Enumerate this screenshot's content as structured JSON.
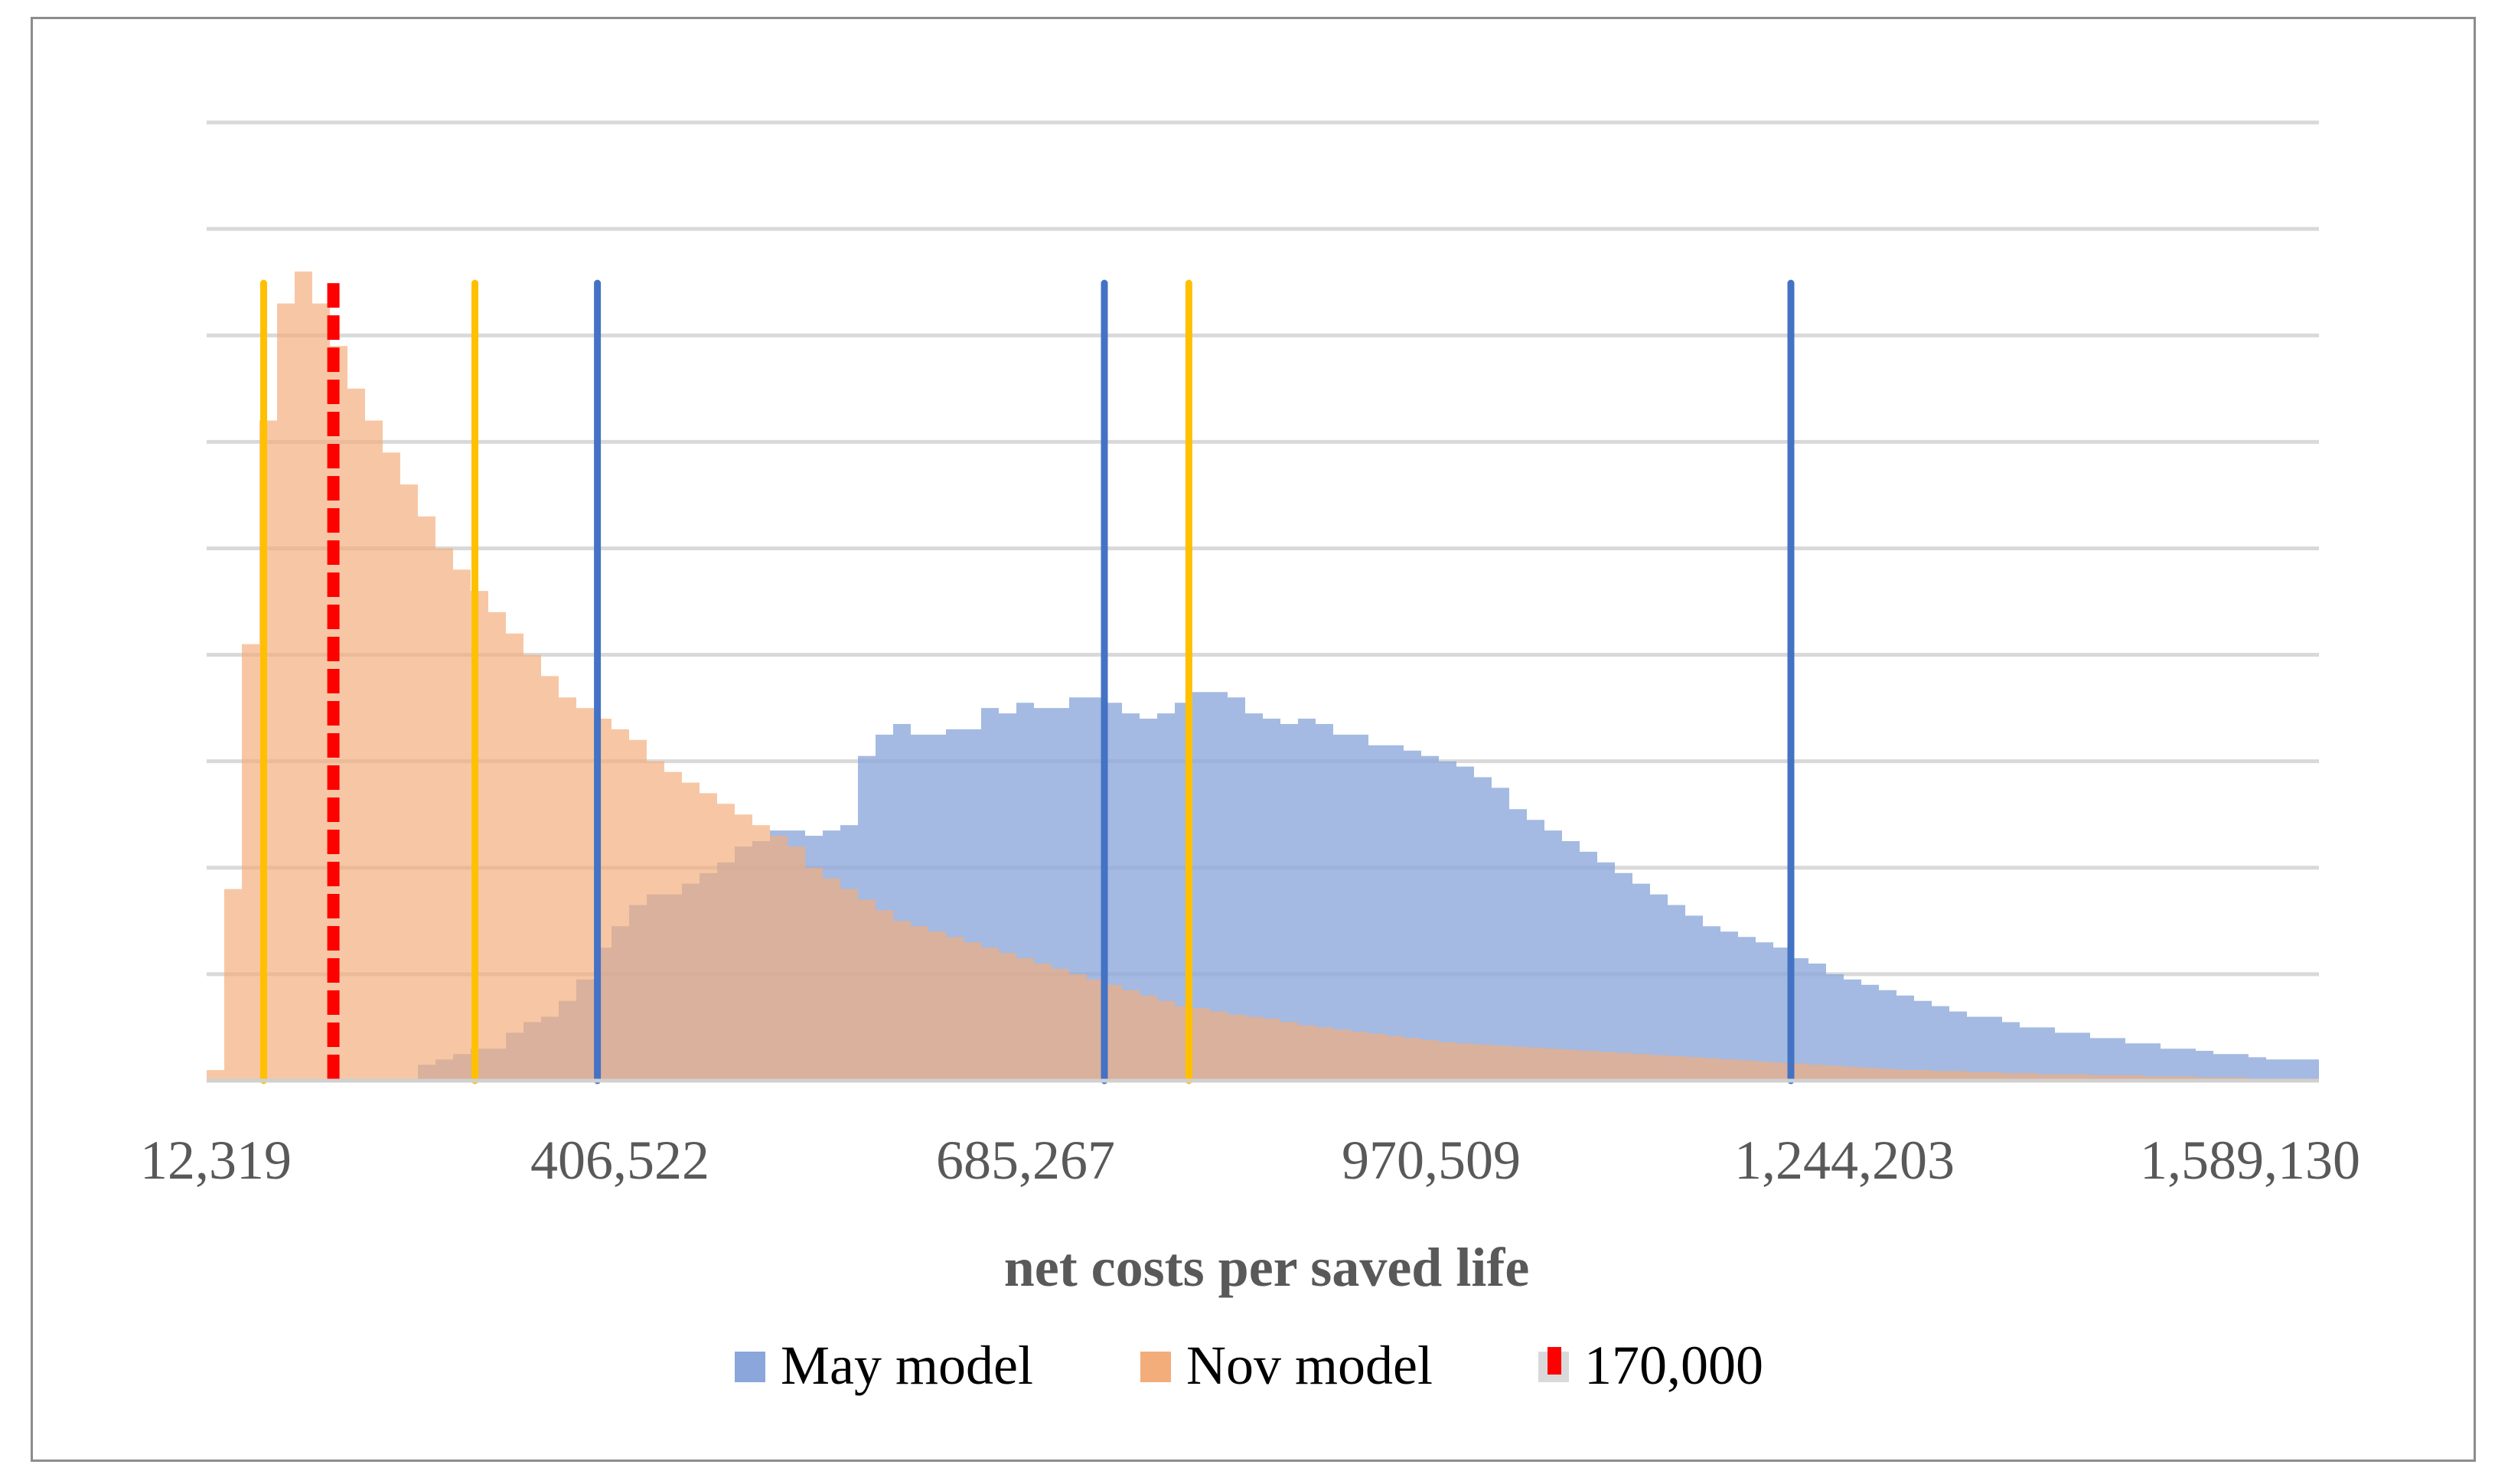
{
  "chart_data": {
    "type": "area",
    "title": "",
    "xlabel": "net costs per saved life",
    "ylabel": "",
    "x_tick_labels": [
      "12,319",
      "406,522",
      "685,267",
      "970,509",
      "1,244,203",
      "1,589,130"
    ],
    "grid": true,
    "y_gridlines": 9,
    "ylim": [
      0,
      9
    ],
    "bins": 120,
    "series": [
      {
        "name": "May model",
        "color": "#8aa6da",
        "values": [
          0,
          0,
          0,
          0,
          0,
          0,
          0,
          0,
          0,
          0,
          0,
          0,
          0.15,
          0.2,
          0.25,
          0.3,
          0.3,
          0.45,
          0.55,
          0.6,
          0.75,
          0.95,
          1.25,
          1.45,
          1.65,
          1.75,
          1.75,
          1.85,
          1.95,
          2.05,
          2.2,
          2.25,
          2.35,
          2.35,
          2.3,
          2.35,
          2.4,
          3.05,
          3.25,
          3.35,
          3.25,
          3.25,
          3.3,
          3.3,
          3.5,
          3.45,
          3.55,
          3.5,
          3.5,
          3.6,
          3.6,
          3.55,
          3.45,
          3.4,
          3.45,
          3.55,
          3.65,
          3.65,
          3.6,
          3.45,
          3.4,
          3.35,
          3.4,
          3.35,
          3.25,
          3.25,
          3.15,
          3.15,
          3.1,
          3.05,
          3.0,
          2.95,
          2.85,
          2.75,
          2.55,
          2.45,
          2.35,
          2.25,
          2.15,
          2.05,
          1.95,
          1.85,
          1.75,
          1.65,
          1.55,
          1.45,
          1.4,
          1.35,
          1.3,
          1.25,
          1.15,
          1.1,
          1.0,
          0.95,
          0.9,
          0.85,
          0.8,
          0.75,
          0.7,
          0.65,
          0.6,
          0.6,
          0.55,
          0.5,
          0.5,
          0.45,
          0.45,
          0.4,
          0.4,
          0.35,
          0.35,
          0.3,
          0.3,
          0.28,
          0.25,
          0.25,
          0.22,
          0.2,
          0.2,
          0.2
        ]
      },
      {
        "name": "Nov model",
        "color": "#f3ad7a",
        "values": [
          0.1,
          1.8,
          4.1,
          6.2,
          7.3,
          7.6,
          7.3,
          6.9,
          6.5,
          6.2,
          5.9,
          5.6,
          5.3,
          5.0,
          4.8,
          4.6,
          4.4,
          4.2,
          4.0,
          3.8,
          3.6,
          3.5,
          3.4,
          3.3,
          3.2,
          3.0,
          2.9,
          2.8,
          2.7,
          2.6,
          2.5,
          2.4,
          2.3,
          2.2,
          2.0,
          1.9,
          1.8,
          1.7,
          1.6,
          1.5,
          1.45,
          1.4,
          1.35,
          1.3,
          1.25,
          1.2,
          1.15,
          1.1,
          1.05,
          1.0,
          0.95,
          0.9,
          0.85,
          0.8,
          0.75,
          0.7,
          0.68,
          0.65,
          0.62,
          0.6,
          0.58,
          0.55,
          0.52,
          0.5,
          0.48,
          0.46,
          0.44,
          0.42,
          0.4,
          0.38,
          0.36,
          0.35,
          0.34,
          0.33,
          0.32,
          0.31,
          0.3,
          0.29,
          0.28,
          0.27,
          0.26,
          0.25,
          0.24,
          0.23,
          0.22,
          0.21,
          0.2,
          0.19,
          0.18,
          0.17,
          0.16,
          0.15,
          0.14,
          0.13,
          0.12,
          0.11,
          0.1,
          0.1,
          0.09,
          0.09,
          0.08,
          0.08,
          0.07,
          0.07,
          0.06,
          0.06,
          0.06,
          0.05,
          0.05,
          0.05,
          0.04,
          0.04,
          0.04,
          0.03,
          0.03,
          0.03,
          0.02,
          0.02,
          0.02,
          0.02
        ]
      }
    ],
    "reference_lines": [
      {
        "name": "May model",
        "color": "#4472c4",
        "x_fraction": [
          0.185,
          0.425,
          0.75
        ]
      },
      {
        "name": "Nov model",
        "color": "#ffc000",
        "x_fraction": [
          0.027,
          0.127,
          0.465
        ]
      },
      {
        "name": "170,000",
        "color": "#ff0000",
        "style": "dashed",
        "x_fraction": [
          0.06
        ]
      }
    ],
    "legend": {
      "placement": "bottom",
      "items": [
        {
          "label": "May model",
          "color": "#8aa6da"
        },
        {
          "label": "Nov model",
          "color": "#f3ad7a"
        },
        {
          "label": "170,000",
          "color": "#ff0000"
        }
      ]
    }
  }
}
